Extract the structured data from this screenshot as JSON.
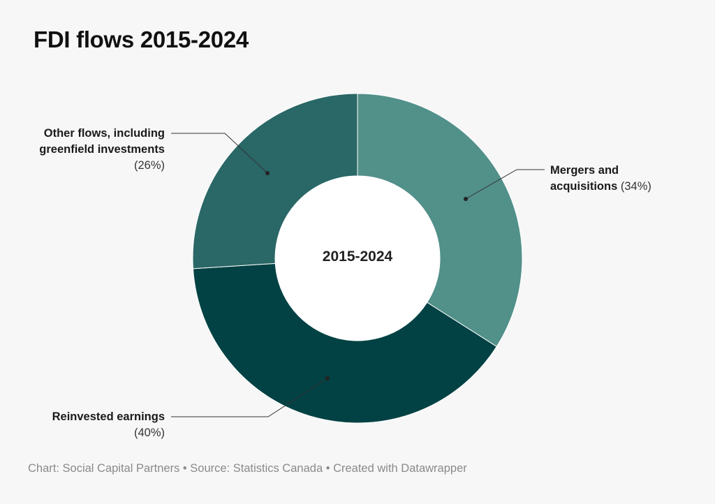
{
  "title": "FDI flows 2015-2024",
  "center_label": "2015-2024",
  "footer": "Chart: Social Capital Partners • Source: Statistics Canada • Created with Datawrapper",
  "chart_data": {
    "type": "pie",
    "donut": true,
    "center_label": "2015-2024",
    "slices": [
      {
        "label": "Mergers and acquisitions",
        "value": 34,
        "pct_text": "(34%)",
        "color": "#52908a"
      },
      {
        "label": "Reinvested earnings",
        "value": 40,
        "pct_text": "(40%)",
        "color": "#034244"
      },
      {
        "label": "Other flows, including greenfield investments",
        "value": 26,
        "pct_text": "(26%)",
        "color": "#2a6767"
      }
    ]
  },
  "labels": {
    "mergers": {
      "line1": "Mergers and",
      "line2": "acquisitions",
      "pct": "(34%)"
    },
    "reinvested": {
      "line1": "Reinvested earnings",
      "pct": "(40%)"
    },
    "other": {
      "line1": "Other flows, including",
      "line2": "greenfield investments",
      "pct": "(26%)"
    }
  }
}
